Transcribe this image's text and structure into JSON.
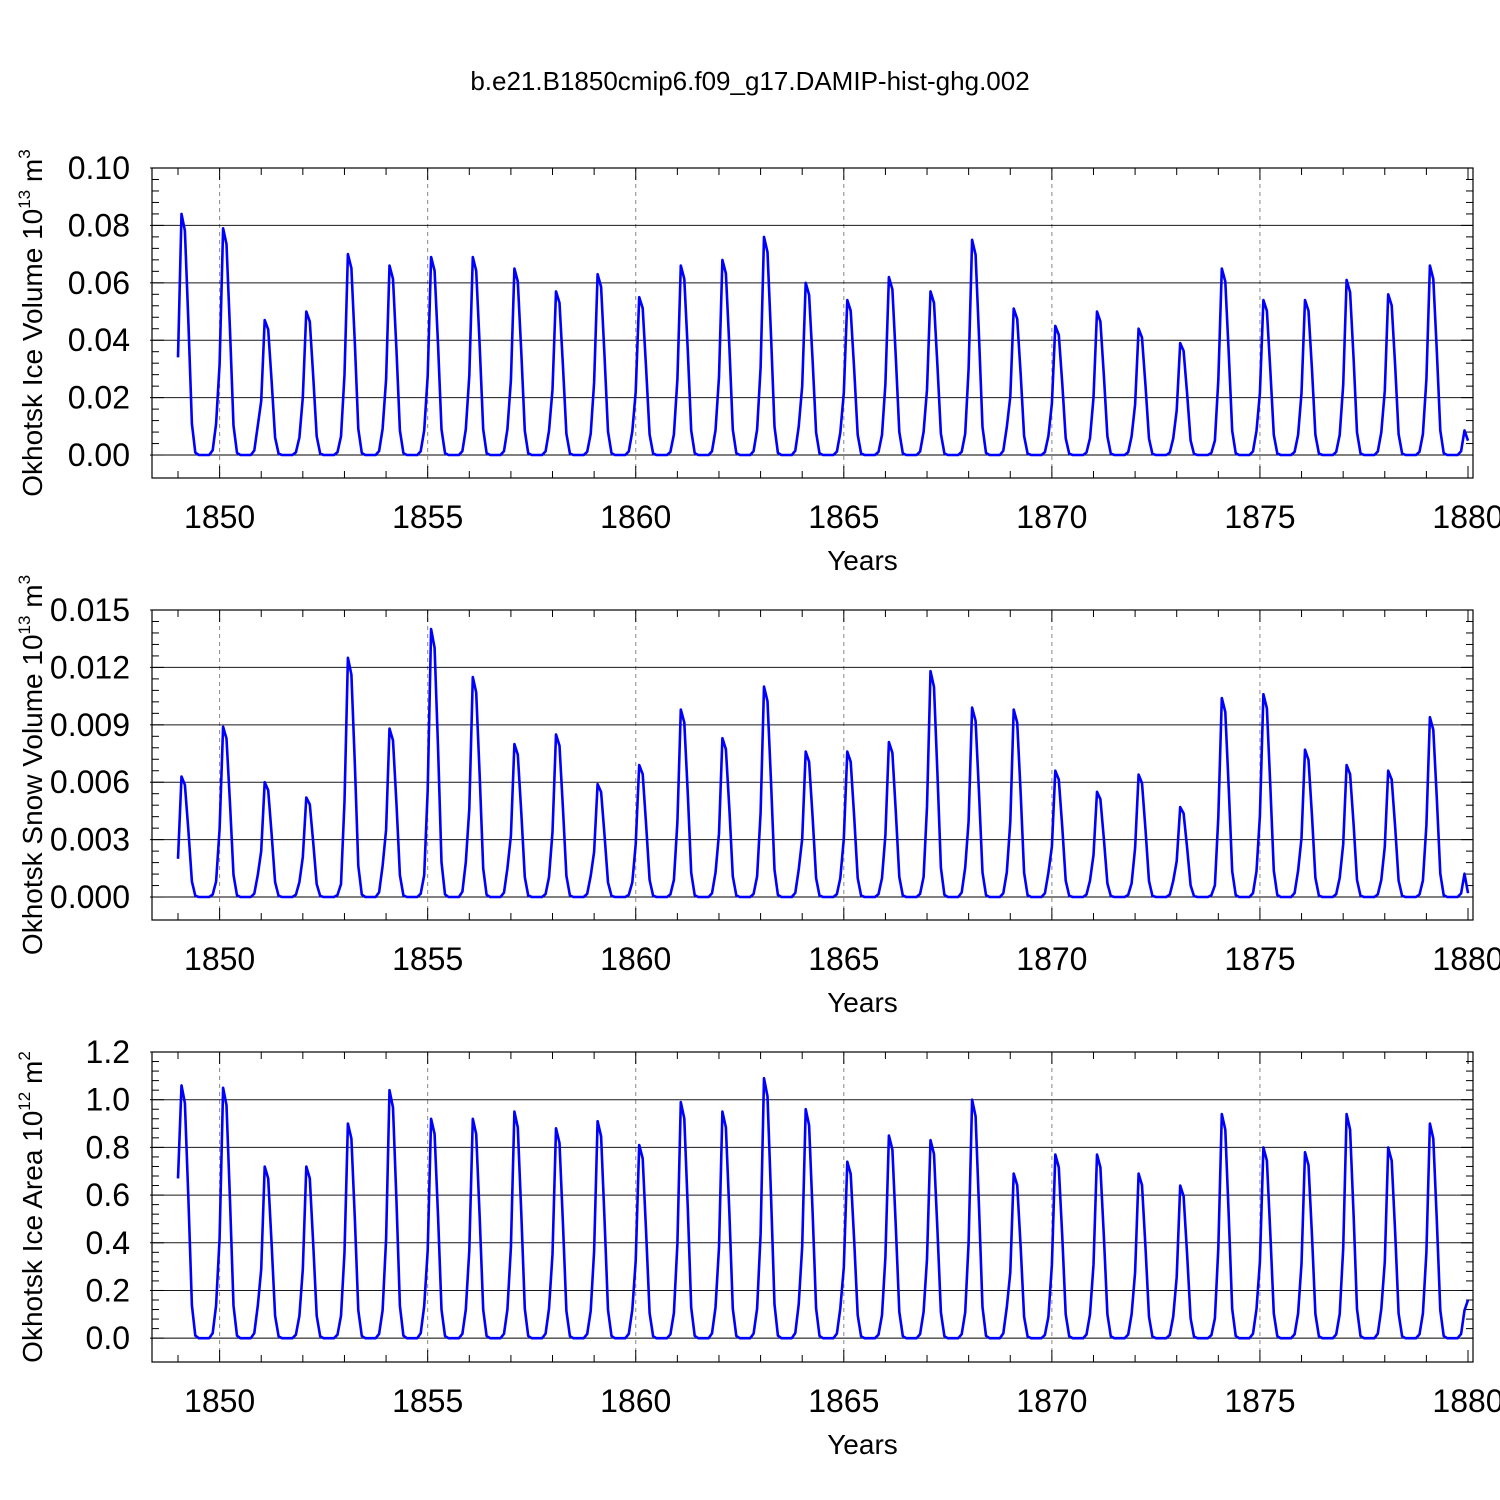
{
  "title": "b.e21.B1850cmip6.f09_g17.DAMIP-hist-ghg.002",
  "colors": {
    "line": "#0000ff",
    "grid": "#888888",
    "axis": "#000000"
  },
  "chart_data": [
    {
      "type": "line",
      "name": "ice-volume",
      "ylabel_main": "Okhotsk Ice Volume 10",
      "ylabel_exp": "13",
      "ylabel_unit": " m",
      "ylabel_unit_exp": "3",
      "xlabel": "Years",
      "xlim": [
        1849,
        1880
      ],
      "ylim": [
        -0.008,
        0.1
      ],
      "yticks": [
        0.0,
        0.02,
        0.04,
        0.06,
        0.08,
        0.1
      ],
      "ytick_labels": [
        "0.00",
        "0.02",
        "0.04",
        "0.06",
        "0.08",
        "0.10"
      ],
      "xticks": [
        1850,
        1855,
        1860,
        1865,
        1870,
        1875,
        1880
      ],
      "xtick_labels": [
        "1850",
        "1855",
        "1860",
        "1865",
        "1870",
        "1875",
        "1880"
      ],
      "series": [
        {
          "name": "Okhotsk Ice Volume",
          "peaks": [
            0.084,
            0.079,
            0.047,
            0.05,
            0.07,
            0.066,
            0.069,
            0.069,
            0.065,
            0.057,
            0.063,
            0.055,
            0.066,
            0.068,
            0.076,
            0.06,
            0.054,
            0.062,
            0.057,
            0.075,
            0.051,
            0.045,
            0.05,
            0.044,
            0.039,
            0.065,
            0.054,
            0.054,
            0.061,
            0.056,
            0.066
          ],
          "start": 0.034,
          "end": 0.005
        }
      ]
    },
    {
      "type": "line",
      "name": "snow-volume",
      "ylabel_main": "Okhotsk Snow Volume 10",
      "ylabel_exp": "13",
      "ylabel_unit": " m",
      "ylabel_unit_exp": "3",
      "xlabel": "Years",
      "xlim": [
        1849,
        1880
      ],
      "ylim": [
        -0.0012,
        0.015
      ],
      "yticks": [
        0.0,
        0.003,
        0.006,
        0.009,
        0.012,
        0.015
      ],
      "ytick_labels": [
        "0.000",
        "0.003",
        "0.006",
        "0.009",
        "0.012",
        "0.015"
      ],
      "xticks": [
        1850,
        1855,
        1860,
        1865,
        1870,
        1875,
        1880
      ],
      "xtick_labels": [
        "1850",
        "1855",
        "1860",
        "1865",
        "1870",
        "1875",
        "1880"
      ],
      "series": [
        {
          "name": "Okhotsk Snow Volume",
          "peaks": [
            0.0063,
            0.0089,
            0.006,
            0.0052,
            0.0125,
            0.0088,
            0.014,
            0.0115,
            0.008,
            0.0085,
            0.0059,
            0.0069,
            0.0098,
            0.0083,
            0.011,
            0.0076,
            0.0076,
            0.0081,
            0.0118,
            0.0099,
            0.0098,
            0.0066,
            0.0055,
            0.0064,
            0.0047,
            0.0104,
            0.0106,
            0.0077,
            0.0069,
            0.0066,
            0.0094
          ],
          "start": 0.002,
          "end": 0.0002
        }
      ]
    },
    {
      "type": "line",
      "name": "ice-area",
      "ylabel_main": "Okhotsk Ice Area 10",
      "ylabel_exp": "12",
      "ylabel_unit": " m",
      "ylabel_unit_exp": "2",
      "xlabel": "Years",
      "xlim": [
        1849,
        1880
      ],
      "ylim": [
        -0.1,
        1.2
      ],
      "yticks": [
        0.0,
        0.2,
        0.4,
        0.6,
        0.8,
        1.0,
        1.2
      ],
      "ytick_labels": [
        "0.0",
        "0.2",
        "0.4",
        "0.6",
        "0.8",
        "1.0",
        "1.2"
      ],
      "xticks": [
        1850,
        1855,
        1860,
        1865,
        1870,
        1875,
        1880
      ],
      "xtick_labels": [
        "1850",
        "1855",
        "1860",
        "1865",
        "1870",
        "1875",
        "1880"
      ],
      "series": [
        {
          "name": "Okhotsk Ice Area",
          "peaks": [
            1.06,
            1.05,
            0.72,
            0.72,
            0.9,
            1.04,
            0.92,
            0.92,
            0.95,
            0.88,
            0.91,
            0.81,
            0.99,
            0.95,
            1.09,
            0.96,
            0.74,
            0.85,
            0.83,
            1.0,
            0.69,
            0.77,
            0.77,
            0.69,
            0.64,
            0.94,
            0.8,
            0.78,
            0.94,
            0.8,
            0.9
          ],
          "start": 0.67,
          "end": 0.16
        }
      ]
    }
  ]
}
